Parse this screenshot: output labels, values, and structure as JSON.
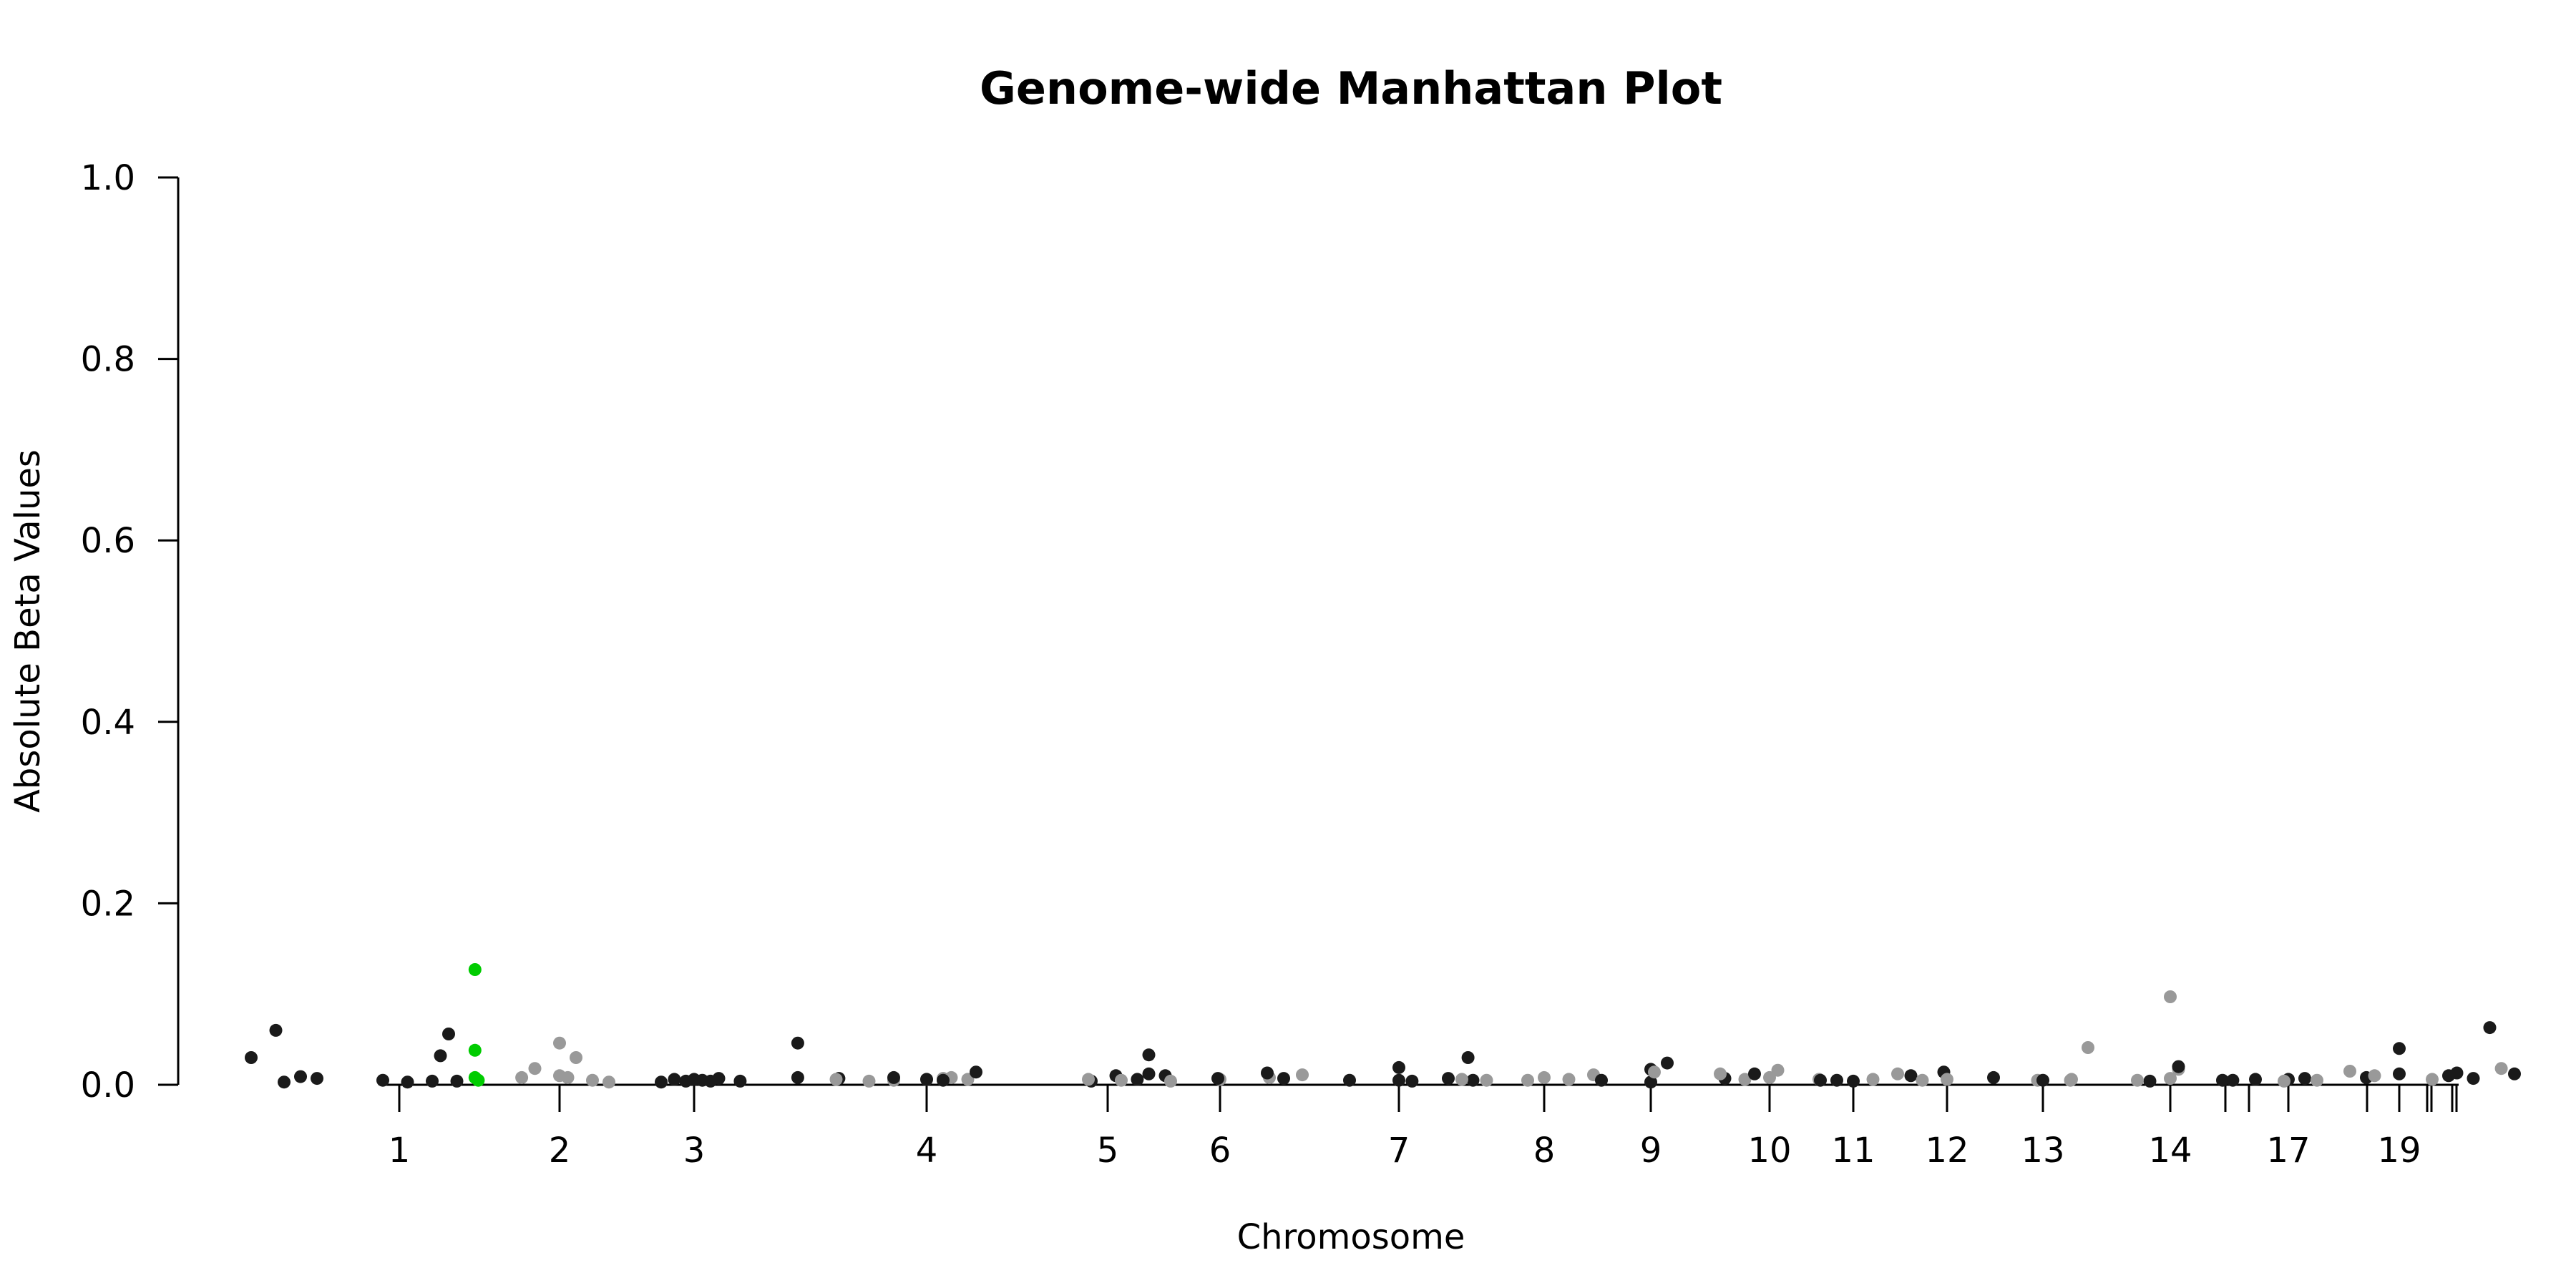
{
  "chart_data": {
    "type": "scatter",
    "title": "Genome-wide Manhattan Plot",
    "xlabel": "Chromosome",
    "ylabel": "Absolute Beta Values",
    "ylim": [
      0,
      1
    ],
    "y_ticks": [
      "0.0",
      "0.2",
      "0.4",
      "0.6",
      "0.8",
      "1.0"
    ],
    "x_tick_labels": [
      "1",
      "2",
      "3",
      "4",
      "5",
      "6",
      "7",
      "8",
      "9",
      "10",
      "11",
      "12",
      "13",
      "14",
      "17",
      "19"
    ],
    "grid": false,
    "legend": "none",
    "colors": {
      "odd": "#1a1a1a",
      "even": "#999999",
      "highlight": "#00cc00",
      "axis": "#000000"
    },
    "series": [
      {
        "chromosome": "1",
        "color_group": "odd",
        "points": [
          [
            -0.9,
            0.03
          ],
          [
            -0.75,
            0.06
          ],
          [
            -0.7,
            0.003
          ],
          [
            -0.6,
            0.009
          ],
          [
            -0.5,
            0.007
          ],
          [
            -0.1,
            0.005
          ],
          [
            0.05,
            0.003
          ],
          [
            0.2,
            0.004
          ],
          [
            0.25,
            0.032
          ],
          [
            0.3,
            0.056
          ],
          [
            0.35,
            0.004
          ]
        ]
      },
      {
        "chromosome": "1-highlight",
        "color_group": "highlight",
        "points": [
          [
            0.46,
            0.127
          ],
          [
            0.46,
            0.038
          ],
          [
            0.46,
            0.008
          ],
          [
            0.48,
            0.005
          ]
        ]
      },
      {
        "chromosome": "2",
        "color_group": "even",
        "points": [
          [
            -0.23,
            0.008
          ],
          [
            -0.15,
            0.018
          ],
          [
            0.0,
            0.046
          ],
          [
            0.0,
            0.01
          ],
          [
            0.05,
            0.008
          ],
          [
            0.1,
            0.03
          ],
          [
            0.2,
            0.005
          ],
          [
            0.3,
            0.003
          ]
        ]
      },
      {
        "chromosome": "3",
        "color_group": "odd",
        "points": [
          [
            -0.2,
            0.003
          ],
          [
            -0.12,
            0.006
          ],
          [
            -0.05,
            0.004
          ],
          [
            0.0,
            0.006
          ],
          [
            0.05,
            0.005
          ],
          [
            0.1,
            0.004
          ],
          [
            0.15,
            0.007
          ],
          [
            0.28,
            0.004
          ],
          [
            0.63,
            0.046
          ],
          [
            0.63,
            0.008
          ],
          [
            0.88,
            0.007
          ]
        ]
      },
      {
        "chromosome": "4",
        "color_group": "even",
        "points": [
          [
            -0.55,
            0.006
          ],
          [
            -0.35,
            0.004
          ],
          [
            -0.2,
            0.005
          ],
          [
            0.0,
            0.006
          ],
          [
            0.1,
            0.007
          ],
          [
            0.15,
            0.008
          ],
          [
            0.25,
            0.006
          ]
        ]
      },
      {
        "chromosome": "5",
        "color_group": "odd",
        "points": [
          [
            -1.3,
            0.008
          ],
          [
            -1.1,
            0.006
          ],
          [
            -1.0,
            0.005
          ],
          [
            -0.8,
            0.014
          ],
          [
            -0.1,
            0.004
          ],
          [
            0.05,
            0.01
          ],
          [
            0.18,
            0.006
          ],
          [
            0.25,
            0.012
          ],
          [
            0.25,
            0.033
          ],
          [
            0.35,
            0.01
          ]
        ]
      },
      {
        "chromosome": "6",
        "color_group": "even",
        "points": [
          [
            -0.8,
            0.006
          ],
          [
            -0.6,
            0.005
          ],
          [
            -0.3,
            0.004
          ],
          [
            0.0,
            0.006
          ],
          [
            0.3,
            0.008
          ],
          [
            0.5,
            0.011
          ]
        ]
      },
      {
        "chromosome": "7",
        "color_group": "odd",
        "points": [
          [
            -1.1,
            0.007
          ],
          [
            -0.8,
            0.013
          ],
          [
            -0.7,
            0.007
          ],
          [
            -0.3,
            0.005
          ],
          [
            0.0,
            0.019
          ],
          [
            0.0,
            0.005
          ],
          [
            0.08,
            0.004
          ],
          [
            0.3,
            0.007
          ],
          [
            0.42,
            0.03
          ],
          [
            0.45,
            0.005
          ]
        ]
      },
      {
        "chromosome": "8",
        "color_group": "even",
        "points": [
          [
            -0.5,
            0.006
          ],
          [
            -0.35,
            0.005
          ],
          [
            -0.1,
            0.005
          ],
          [
            0.0,
            0.008
          ],
          [
            0.15,
            0.006
          ],
          [
            0.3,
            0.011
          ]
        ]
      },
      {
        "chromosome": "9",
        "color_group": "odd",
        "points": [
          [
            -0.3,
            0.005
          ],
          [
            0.0,
            0.003
          ],
          [
            0.0,
            0.017
          ],
          [
            0.1,
            0.024
          ],
          [
            0.45,
            0.007
          ]
        ]
      },
      {
        "chromosome": "10",
        "color_group": "even",
        "points": [
          [
            -0.7,
            0.014
          ],
          [
            -0.3,
            0.012
          ],
          [
            -0.15,
            0.006
          ],
          [
            0.0,
            0.008
          ],
          [
            0.05,
            0.016
          ],
          [
            0.3,
            0.006
          ]
        ]
      },
      {
        "chromosome": "11",
        "color_group": "odd",
        "points": [
          [
            -0.6,
            0.012
          ],
          [
            -0.2,
            0.005
          ],
          [
            -0.1,
            0.005
          ],
          [
            0.0,
            0.004
          ],
          [
            0.35,
            0.01
          ],
          [
            0.55,
            0.014
          ]
        ]
      },
      {
        "chromosome": "12",
        "color_group": "even",
        "points": [
          [
            -0.45,
            0.006
          ],
          [
            -0.3,
            0.012
          ],
          [
            -0.15,
            0.005
          ],
          [
            0.0,
            0.006
          ],
          [
            0.55,
            0.005
          ],
          [
            0.75,
            0.005
          ]
        ]
      },
      {
        "chromosome": "13",
        "color_group": "odd",
        "points": [
          [
            -0.3,
            0.008
          ],
          [
            0.0,
            0.005
          ],
          [
            0.65,
            0.004
          ]
        ]
      },
      {
        "chromosome": "14",
        "color_group": "even",
        "points": [
          [
            -0.6,
            0.006
          ],
          [
            -0.5,
            0.041
          ],
          [
            -0.2,
            0.005
          ],
          [
            0.0,
            0.007
          ],
          [
            0.0,
            0.097
          ],
          [
            0.05,
            0.017
          ]
        ]
      },
      {
        "chromosome": "14-dark",
        "color_group": "odd",
        "points": [
          [
            0.05,
            0.02
          ],
          [
            0.38,
            0.005
          ]
        ]
      },
      {
        "chromosome": "17",
        "color_group": "odd",
        "points": [
          [
            -0.4,
            0.005
          ],
          [
            -0.2,
            0.006
          ],
          [
            0.0,
            0.006
          ],
          [
            0.1,
            0.007
          ]
        ]
      },
      {
        "chromosome": "19",
        "color_group": "odd",
        "points": [
          [
            -0.2,
            0.008
          ],
          [
            0.0,
            0.04
          ],
          [
            0.0,
            0.012
          ],
          [
            0.3,
            0.01
          ],
          [
            0.35,
            0.013
          ],
          [
            0.45,
            0.007
          ],
          [
            0.55,
            0.063
          ],
          [
            0.7,
            0.012
          ]
        ]
      },
      {
        "chromosome": "19-gray",
        "color_group": "even",
        "points": [
          [
            -0.7,
            0.004
          ],
          [
            -0.5,
            0.005
          ],
          [
            -0.3,
            0.015
          ],
          [
            -0.15,
            0.01
          ],
          [
            0.2,
            0.006
          ],
          [
            0.62,
            0.018
          ]
        ]
      }
    ]
  }
}
